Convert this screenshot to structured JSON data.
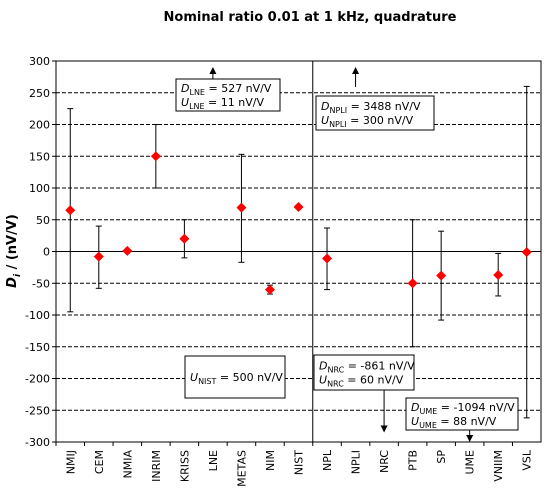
{
  "chart_data": {
    "type": "scatter",
    "title": "Nominal ratio 0.01 at 1 kHz, quadrature",
    "xlabel": "",
    "ylabel": {
      "main": "D",
      "sub": "i",
      "rest": " / (nV/V)"
    },
    "ylim": [
      -300,
      300
    ],
    "yticks": [
      -300,
      -250,
      -200,
      -150,
      -100,
      -50,
      0,
      50,
      100,
      150,
      200,
      250,
      300
    ],
    "grid": "horizontal-dashed",
    "legend": "none",
    "categories": [
      "NMIJ",
      "CEM",
      "NMIA",
      "INRIM",
      "KRISS",
      "LNE",
      "METAS",
      "NIM",
      "NIST",
      "NPL",
      "NPLI",
      "NRC",
      "PTB",
      "SP",
      "UME",
      "VNIIM",
      "VSL"
    ],
    "series": [
      {
        "marker_color": "#ff0000",
        "points": [
          {
            "x": "NMIJ",
            "y": 65,
            "err_low": -95,
            "err_high": 225
          },
          {
            "x": "CEM",
            "y": -8,
            "err_low": -58,
            "err_high": 40
          },
          {
            "x": "NMIA",
            "y": 1,
            "err_low": null,
            "err_high": null
          },
          {
            "x": "INRIM",
            "y": 150,
            "err_low": 100,
            "err_high": 200
          },
          {
            "x": "KRISS",
            "y": 20,
            "err_low": -10,
            "err_high": 50
          },
          {
            "x": "METAS",
            "y": 69,
            "err_low": -17,
            "err_high": 153
          },
          {
            "x": "NIM",
            "y": -60,
            "err_low": -67,
            "err_high": -53
          },
          {
            "x": "NIST",
            "y": 70,
            "err_low": null,
            "err_high": null
          },
          {
            "x": "NPL",
            "y": -11,
            "err_low": -60,
            "err_high": 37
          },
          {
            "x": "PTB",
            "y": -50,
            "err_low": -150,
            "err_high": 50
          },
          {
            "x": "SP",
            "y": -38,
            "err_low": -108,
            "err_high": 32
          },
          {
            "x": "VNIIM",
            "y": -37,
            "err_low": -70,
            "err_high": -3
          },
          {
            "x": "VSL",
            "y": -1,
            "err_low": -262,
            "err_high": 260
          }
        ]
      }
    ],
    "divider_after": "NIST",
    "off_scale_arrows": [
      {
        "category": "LNE",
        "direction": "up"
      },
      {
        "category": "NPLI",
        "direction": "up"
      },
      {
        "category": "NRC",
        "direction": "down"
      },
      {
        "category": "UME",
        "direction": "down"
      }
    ],
    "annotations": [
      {
        "id": "lne",
        "lines": [
          {
            "sym": "D",
            "sub": "LNE",
            "rest": " = 527 nV/V"
          },
          {
            "sym": "U",
            "sub": "LNE",
            "rest": " = 11 nV/V"
          }
        ]
      },
      {
        "id": "npli",
        "lines": [
          {
            "sym": "D",
            "sub": "NPLI",
            "rest": " = 3488  nV/V"
          },
          {
            "sym": "U",
            "sub": "NPLI",
            "rest": " = 300 nV/V"
          }
        ]
      },
      {
        "id": "nist",
        "lines": [
          {
            "sym": "U",
            "sub": "NIST",
            "rest": " = 500 nV/V"
          }
        ]
      },
      {
        "id": "nrc",
        "lines": [
          {
            "sym": "D",
            "sub": "NRC",
            "rest": " = -861 nV/V"
          },
          {
            "sym": "U",
            "sub": "NRC",
            "rest": " = 60 nV/V"
          }
        ]
      },
      {
        "id": "ume",
        "lines": [
          {
            "sym": "D",
            "sub": "UME",
            "rest": " = -1094 nV/V"
          },
          {
            "sym": "U",
            "sub": "UME",
            "rest": " = 88 nV/V"
          }
        ]
      }
    ]
  }
}
